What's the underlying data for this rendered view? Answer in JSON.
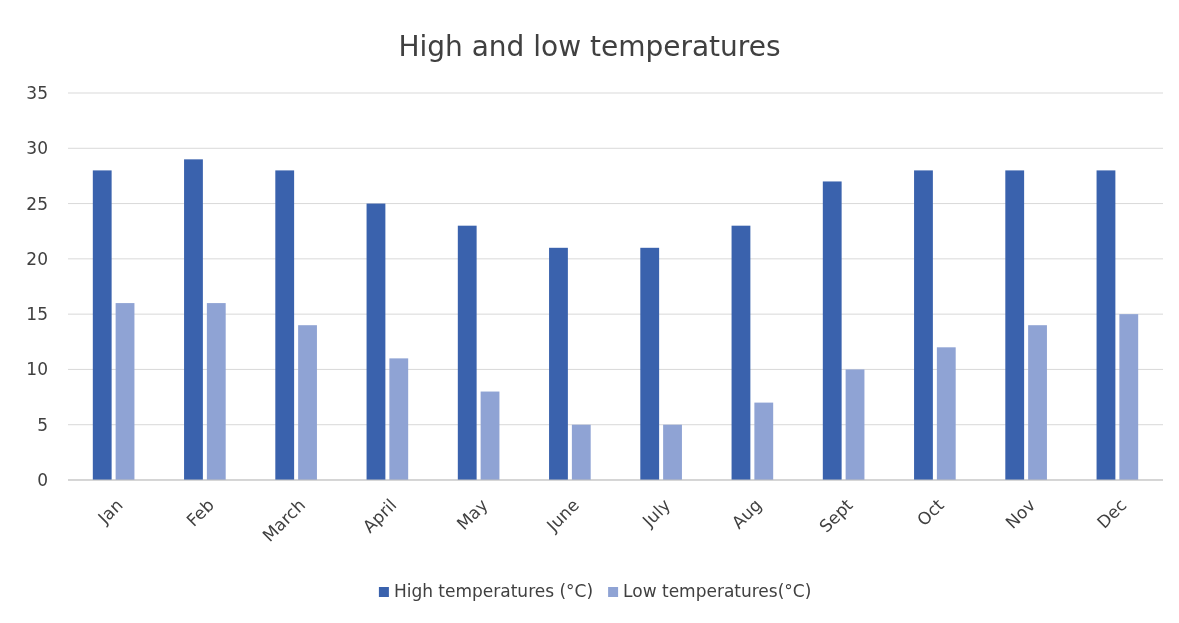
{
  "chart_data": {
    "type": "bar",
    "title": "High and low temperatures",
    "categories": [
      "Jan",
      "Feb",
      "March",
      "April",
      "May",
      "June",
      "July",
      "Aug",
      "Sept",
      "Oct",
      "Nov",
      "Dec"
    ],
    "series": [
      {
        "name": "High temperatures (°C)",
        "color": "#3a62ad",
        "values": [
          28,
          29,
          28,
          25,
          23,
          21,
          21,
          23,
          27,
          28,
          28,
          28
        ]
      },
      {
        "name": "Low temperatures(°C)",
        "color": "#8fa3d4",
        "values": [
          16,
          16,
          14,
          11,
          8,
          5,
          5,
          7,
          10,
          12,
          14,
          15
        ]
      }
    ],
    "ylim": [
      0,
      35
    ],
    "yticks": [
      0,
      5,
      10,
      15,
      20,
      25,
      30,
      35
    ],
    "grid": "y",
    "legend": "bottom"
  }
}
